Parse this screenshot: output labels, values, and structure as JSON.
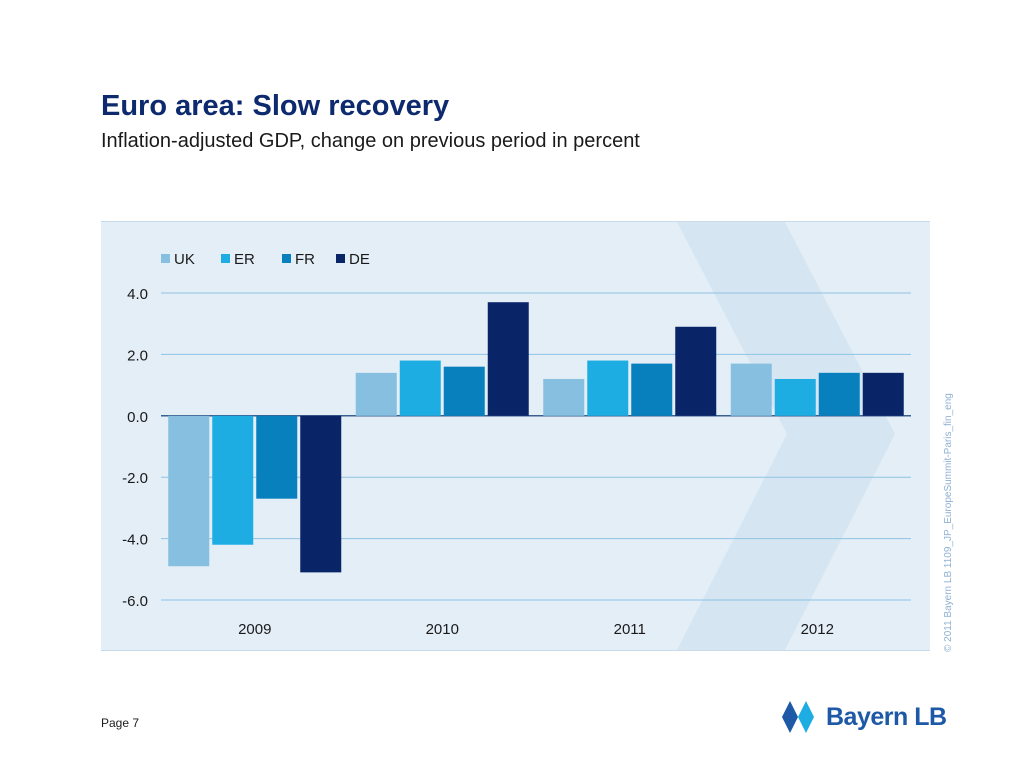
{
  "slide": {
    "title": "Euro area: Slow recovery",
    "subtitle": "Inflation-adjusted GDP, change on previous period in percent",
    "side_note": "© 2011 Bayern LB  1109_JP_EuropeSummit-Paris_fin_eng",
    "page_label": "Page 7",
    "logo_text": "Bayern LB",
    "colors": {
      "title": "#0e2a6e",
      "panel_bg": "#e3eef7",
      "logo_blue": "#1d59a6"
    }
  },
  "chart_data": {
    "type": "bar",
    "categories": [
      "2009",
      "2010",
      "2011",
      "2012"
    ],
    "series": [
      {
        "name": "UK",
        "color": "#86bfdf",
        "values": [
          -4.9,
          1.4,
          1.2,
          1.7
        ]
      },
      {
        "name": "ER",
        "color": "#1eade2",
        "values": [
          -4.2,
          1.8,
          1.8,
          1.2
        ]
      },
      {
        "name": "FR",
        "color": "#0880be",
        "values": [
          -2.7,
          1.6,
          1.7,
          1.4
        ]
      },
      {
        "name": "DE",
        "color": "#0a2468",
        "values": [
          -5.1,
          3.7,
          2.9,
          1.4
        ]
      }
    ],
    "ylim": [
      -6,
      4
    ],
    "yticks": [
      "4.0",
      "2.0",
      "0.0",
      "-2.0",
      "-4.0",
      "-6.0"
    ],
    "ytick_values": [
      4,
      2,
      0,
      -2,
      -4,
      -6
    ],
    "grid": true,
    "legend_position": "top-left"
  }
}
